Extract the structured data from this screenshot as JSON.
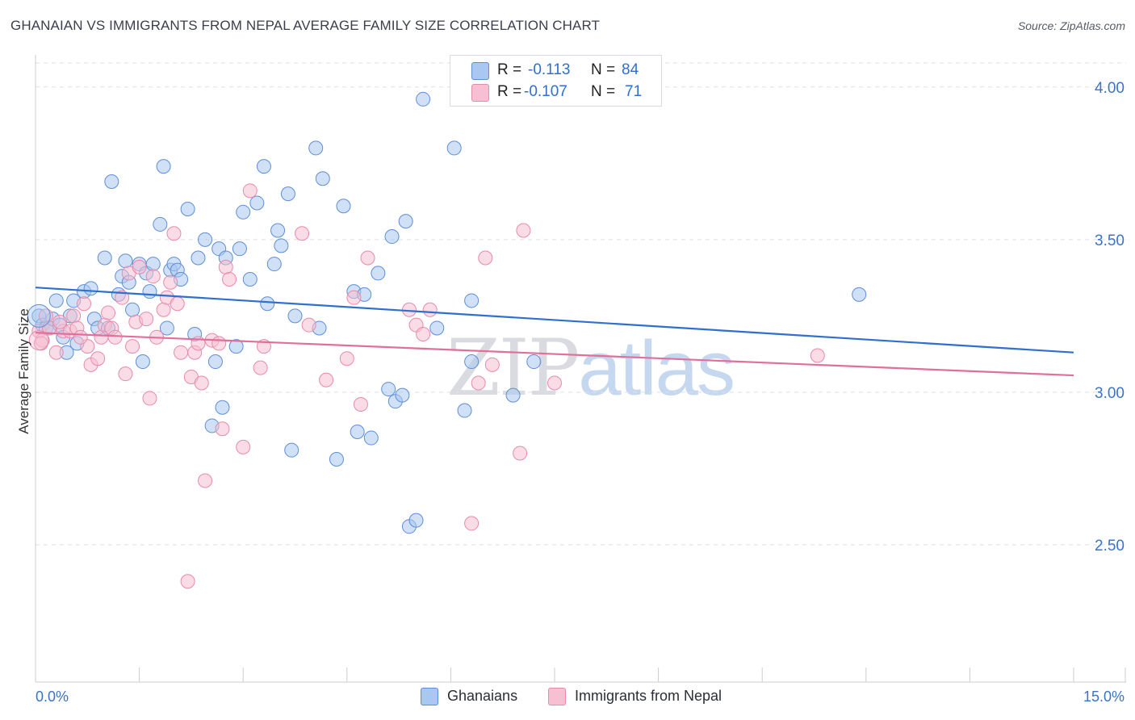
{
  "header": {
    "title": "GHANAIAN VS IMMIGRANTS FROM NEPAL AVERAGE FAMILY SIZE CORRELATION CHART",
    "source": "Source: ZipAtlas.com"
  },
  "legend_stats": [
    {
      "r_label": "R =",
      "r_value": "-0.113",
      "n_label": "N =",
      "n_value": "84"
    },
    {
      "r_label": "R =",
      "r_value": "-0.107",
      "n_label": "N =",
      "n_value": "71"
    }
  ],
  "watermark": {
    "zip": "ZIP",
    "atlas": "atlas"
  },
  "colors": {
    "blue_fill": "#a9c7f0",
    "blue_stroke": "#5d8fd6",
    "blue_line": "#2f6fce",
    "pink_fill": "#f6bfd2",
    "pink_stroke": "#e88aab",
    "pink_line": "#e0709a",
    "grid": "#dde0e6",
    "axis_label": "#3b73c6"
  },
  "chart_data": {
    "type": "scatter",
    "title": "GHANAIAN VS IMMIGRANTS FROM NEPAL AVERAGE FAMILY SIZE CORRELATION CHART",
    "xlabel": "",
    "ylabel": "Average Family Size",
    "xlim": [
      0,
      15
    ],
    "ylim": [
      2.05,
      4.1
    ],
    "x_tick_labels": [
      "0.0%",
      "15.0%"
    ],
    "y_ticks": [
      2.5,
      3.0,
      3.5,
      4.0
    ],
    "y_tick_labels": [
      "2.50",
      "3.00",
      "3.50",
      "4.00"
    ],
    "grid": "horizontal dashed",
    "legend_position": "bottom-center",
    "series": [
      {
        "name": "Ghanaians",
        "color": "#a9c7f0",
        "trend": {
          "x": [
            0,
            15
          ],
          "y": [
            3.343,
            3.13
          ]
        },
        "points": [
          [
            0.05,
            3.25
          ],
          [
            0.1,
            3.22
          ],
          [
            0.15,
            3.21
          ],
          [
            0.2,
            3.21
          ],
          [
            0.25,
            3.24
          ],
          [
            0.3,
            3.3
          ],
          [
            0.35,
            3.22
          ],
          [
            0.4,
            3.18
          ],
          [
            0.45,
            3.13
          ],
          [
            0.5,
            3.25
          ],
          [
            0.55,
            3.3
          ],
          [
            0.6,
            3.16
          ],
          [
            0.7,
            3.33
          ],
          [
            0.8,
            3.34
          ],
          [
            0.85,
            3.24
          ],
          [
            0.9,
            3.21
          ],
          [
            1.0,
            3.44
          ],
          [
            1.05,
            3.21
          ],
          [
            1.1,
            3.69
          ],
          [
            1.2,
            3.32
          ],
          [
            1.25,
            3.38
          ],
          [
            1.3,
            3.43
          ],
          [
            1.35,
            3.36
          ],
          [
            1.4,
            3.27
          ],
          [
            1.5,
            3.42
          ],
          [
            1.55,
            3.1
          ],
          [
            1.6,
            3.39
          ],
          [
            1.65,
            3.33
          ],
          [
            1.7,
            3.42
          ],
          [
            1.8,
            3.55
          ],
          [
            1.85,
            3.74
          ],
          [
            1.9,
            3.21
          ],
          [
            1.95,
            3.4
          ],
          [
            2.0,
            3.42
          ],
          [
            2.05,
            3.4
          ],
          [
            2.1,
            3.37
          ],
          [
            2.2,
            3.6
          ],
          [
            2.3,
            3.19
          ],
          [
            2.35,
            3.44
          ],
          [
            2.45,
            3.5
          ],
          [
            2.55,
            2.89
          ],
          [
            2.6,
            3.1
          ],
          [
            2.65,
            3.47
          ],
          [
            2.7,
            2.95
          ],
          [
            2.75,
            3.44
          ],
          [
            2.9,
            3.15
          ],
          [
            2.95,
            3.47
          ],
          [
            3.0,
            3.59
          ],
          [
            3.1,
            3.37
          ],
          [
            3.2,
            3.62
          ],
          [
            3.3,
            3.74
          ],
          [
            3.35,
            3.29
          ],
          [
            3.45,
            3.42
          ],
          [
            3.5,
            3.53
          ],
          [
            3.55,
            3.48
          ],
          [
            3.65,
            3.65
          ],
          [
            3.7,
            2.81
          ],
          [
            3.75,
            3.25
          ],
          [
            4.05,
            3.8
          ],
          [
            4.1,
            3.21
          ],
          [
            4.15,
            3.7
          ],
          [
            4.35,
            2.78
          ],
          [
            4.45,
            3.61
          ],
          [
            4.6,
            3.33
          ],
          [
            4.65,
            2.87
          ],
          [
            4.75,
            3.32
          ],
          [
            4.85,
            2.85
          ],
          [
            4.95,
            3.39
          ],
          [
            5.1,
            3.01
          ],
          [
            5.15,
            3.51
          ],
          [
            5.2,
            2.97
          ],
          [
            5.3,
            2.99
          ],
          [
            5.35,
            3.56
          ],
          [
            5.4,
            2.56
          ],
          [
            5.5,
            2.58
          ],
          [
            5.6,
            3.96
          ],
          [
            5.8,
            3.21
          ],
          [
            6.05,
            3.8
          ],
          [
            6.2,
            2.94
          ],
          [
            6.3,
            3.3
          ],
          [
            6.3,
            3.1
          ],
          [
            6.9,
            2.99
          ],
          [
            7.2,
            3.1
          ],
          [
            11.9,
            3.32
          ]
        ]
      },
      {
        "name": "Immigrants from Nepal",
        "color": "#f6bfd2",
        "trend": {
          "x": [
            0,
            15
          ],
          "y": [
            3.195,
            3.055
          ]
        },
        "points": [
          [
            0.05,
            3.2
          ],
          [
            0.1,
            3.17
          ],
          [
            0.15,
            3.25
          ],
          [
            0.2,
            3.21
          ],
          [
            0.3,
            3.13
          ],
          [
            0.4,
            3.2
          ],
          [
            0.5,
            3.2
          ],
          [
            0.55,
            3.25
          ],
          [
            0.6,
            3.21
          ],
          [
            0.7,
            3.29
          ],
          [
            0.75,
            3.15
          ],
          [
            0.8,
            3.09
          ],
          [
            0.9,
            3.11
          ],
          [
            0.95,
            3.18
          ],
          [
            1.0,
            3.22
          ],
          [
            1.05,
            3.26
          ],
          [
            1.1,
            3.21
          ],
          [
            1.15,
            3.18
          ],
          [
            1.25,
            3.31
          ],
          [
            1.3,
            3.06
          ],
          [
            1.35,
            3.39
          ],
          [
            1.4,
            3.15
          ],
          [
            1.45,
            3.23
          ],
          [
            1.5,
            3.41
          ],
          [
            1.6,
            3.24
          ],
          [
            1.65,
            2.98
          ],
          [
            1.7,
            3.38
          ],
          [
            1.75,
            3.18
          ],
          [
            1.85,
            3.27
          ],
          [
            1.9,
            3.31
          ],
          [
            1.95,
            3.36
          ],
          [
            2.0,
            3.52
          ],
          [
            2.05,
            3.29
          ],
          [
            2.1,
            3.13
          ],
          [
            2.2,
            2.38
          ],
          [
            2.25,
            3.05
          ],
          [
            2.3,
            3.13
          ],
          [
            2.35,
            3.16
          ],
          [
            2.4,
            3.03
          ],
          [
            2.45,
            2.71
          ],
          [
            2.55,
            3.17
          ],
          [
            2.65,
            3.16
          ],
          [
            2.7,
            2.88
          ],
          [
            2.75,
            3.41
          ],
          [
            2.8,
            3.37
          ],
          [
            3.0,
            2.82
          ],
          [
            3.1,
            3.66
          ],
          [
            3.25,
            3.08
          ],
          [
            3.3,
            3.15
          ],
          [
            3.85,
            3.52
          ],
          [
            3.95,
            3.22
          ],
          [
            4.2,
            3.04
          ],
          [
            4.5,
            3.11
          ],
          [
            4.6,
            3.31
          ],
          [
            4.7,
            2.96
          ],
          [
            4.8,
            3.44
          ],
          [
            5.4,
            3.27
          ],
          [
            5.5,
            3.22
          ],
          [
            5.6,
            3.19
          ],
          [
            5.7,
            3.27
          ],
          [
            6.3,
            2.57
          ],
          [
            6.4,
            3.03
          ],
          [
            6.5,
            3.44
          ],
          [
            6.6,
            3.09
          ],
          [
            7.0,
            2.8
          ],
          [
            7.05,
            3.53
          ],
          [
            7.5,
            3.03
          ],
          [
            11.3,
            3.12
          ],
          [
            0.08,
            3.16
          ],
          [
            0.35,
            3.23
          ],
          [
            0.65,
            3.18
          ]
        ]
      }
    ]
  },
  "bottom_legend": [
    {
      "label": "Ghanaians"
    },
    {
      "label": "Immigrants from Nepal"
    }
  ]
}
